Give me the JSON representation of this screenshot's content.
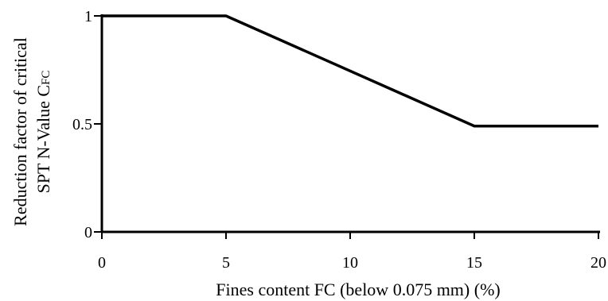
{
  "chart_data": {
    "type": "line",
    "title": "",
    "xlabel": "Fines content FC (below 0.075 mm) (%)",
    "ylabel_line1": "Reduction factor of critical",
    "ylabel_line2_main": "SPT N-Value C",
    "ylabel_line2_subscript": "FC",
    "xlim": [
      0,
      20
    ],
    "ylim": [
      0,
      1
    ],
    "x_ticks": [
      0,
      5,
      10,
      15,
      20
    ],
    "y_ticks": [
      0,
      0.5,
      1
    ],
    "x_tick_labels": [
      "0",
      "5",
      "10",
      "15",
      "20"
    ],
    "y_tick_labels": [
      "0",
      "0.5",
      "1"
    ],
    "grid": false,
    "series": [
      {
        "x": [
          0,
          5,
          15,
          20
        ],
        "y": [
          1,
          1,
          0.49,
          0.49
        ]
      }
    ]
  }
}
